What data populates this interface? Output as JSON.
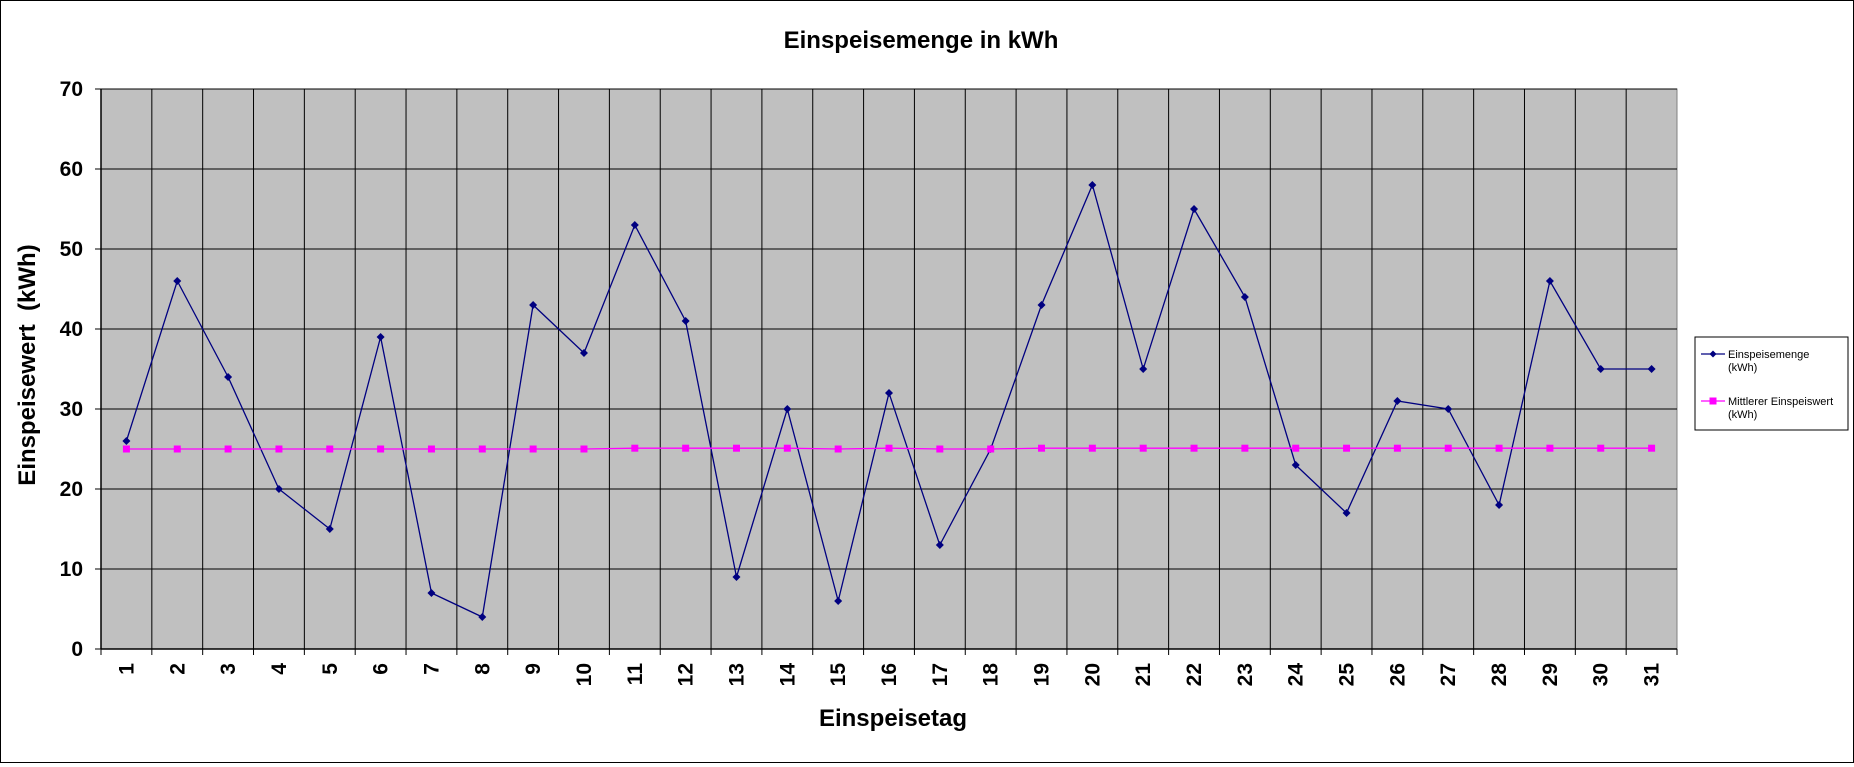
{
  "chart_data": {
    "type": "line",
    "title": "Einspeisemenge in kWh",
    "xlabel": "Einspeisetag",
    "ylabel": "Einspeisewert  (kWh)",
    "ylim": [
      0,
      70
    ],
    "yticks": [
      0,
      10,
      20,
      30,
      40,
      50,
      60,
      70
    ],
    "grid": true,
    "legend_position": "right",
    "plot_background": "#c0c0c0",
    "categories": [
      "1",
      "2",
      "3",
      "4",
      "5",
      "6",
      "7",
      "8",
      "9",
      "10",
      "11",
      "12",
      "13",
      "14",
      "15",
      "16",
      "17",
      "18",
      "19",
      "20",
      "21",
      "22",
      "23",
      "24",
      "25",
      "26",
      "27",
      "28",
      "29",
      "30",
      "31"
    ],
    "series": [
      {
        "name_lines": [
          "Einspeisemenge",
          "(kWh)"
        ],
        "color": "#000080",
        "marker": "diamond",
        "values": [
          26,
          46,
          34,
          20,
          15,
          39,
          7,
          4,
          43,
          37,
          53,
          41,
          9,
          30,
          6,
          32,
          13,
          25,
          43,
          58,
          35,
          55,
          44,
          23,
          17,
          31,
          30,
          18,
          46,
          35,
          35
        ]
      },
      {
        "name_lines": [
          "Mittlerer Einspeiswert",
          "(kWh)"
        ],
        "color": "#ff00ff",
        "marker": "square",
        "values": [
          25,
          25,
          25,
          25,
          25,
          25,
          25,
          25,
          25,
          25,
          25.1,
          25.1,
          25.1,
          25.1,
          25,
          25.1,
          25,
          25,
          25.1,
          25.1,
          25.1,
          25.1,
          25.1,
          25.1,
          25.1,
          25.1,
          25.1,
          25.1,
          25.1,
          25.1,
          25.1
        ]
      }
    ]
  }
}
